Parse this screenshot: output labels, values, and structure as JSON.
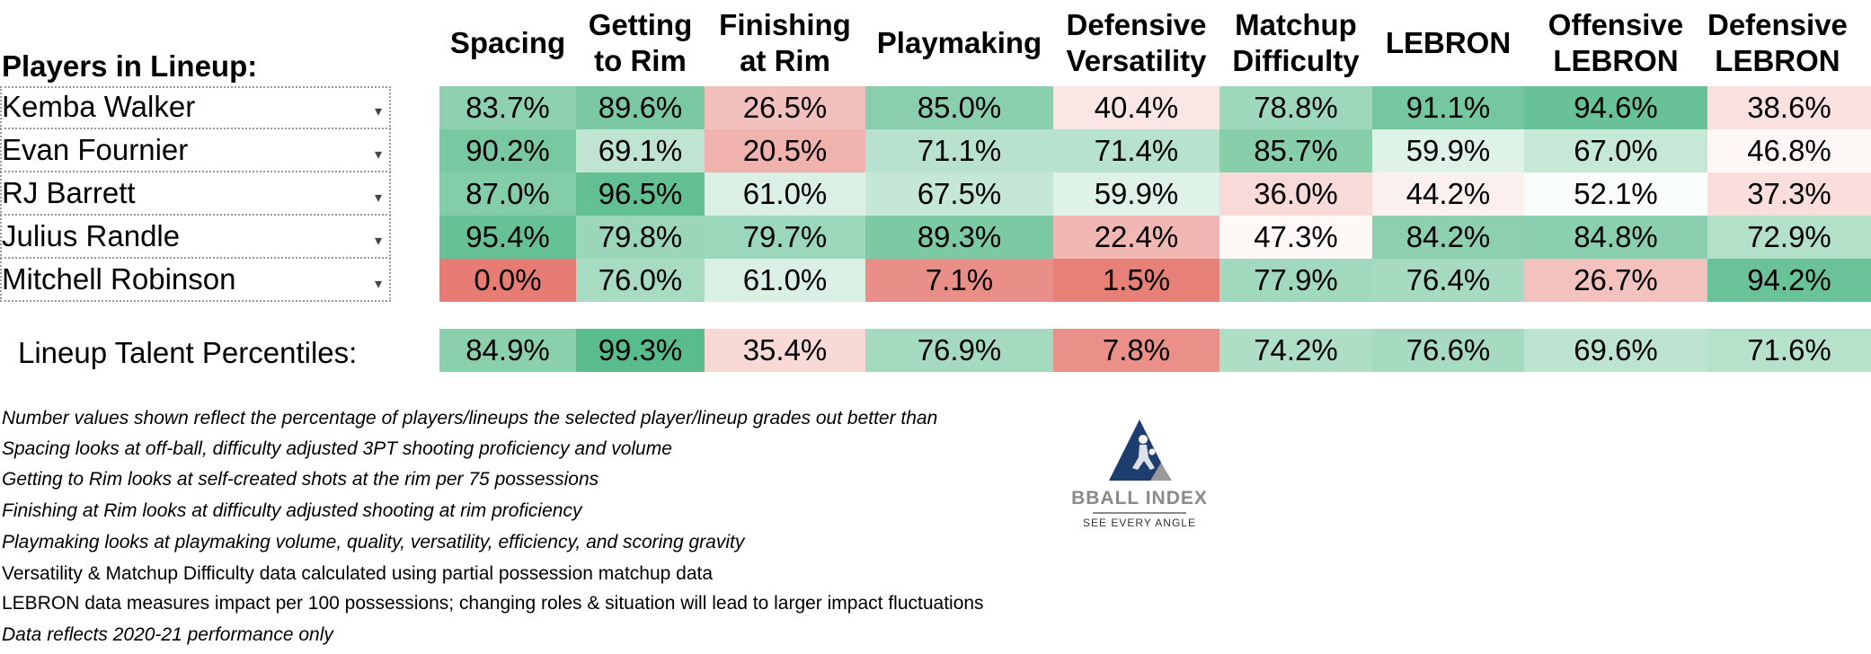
{
  "lineup_title": "Players in Lineup:",
  "columns": [
    "Spacing",
    "Getting\nto Rim",
    "Finishing\nat Rim",
    "Playmaking",
    "Defensive\nVersatility",
    "Matchup\nDifficulty",
    "LEBRON",
    "Offensive\nLEBRON",
    "Defensive\nLEBRON"
  ],
  "dropdown_icon": "chevron-down-icon",
  "players": [
    {
      "name": "Kemba Walker",
      "values": [
        "83.7%",
        "89.6%",
        "26.5%",
        "85.0%",
        "40.4%",
        "78.8%",
        "91.1%",
        "94.6%",
        "38.6%"
      ]
    },
    {
      "name": "Evan Fournier",
      "values": [
        "90.2%",
        "69.1%",
        "20.5%",
        "71.1%",
        "71.4%",
        "85.7%",
        "59.9%",
        "67.0%",
        "46.8%"
      ]
    },
    {
      "name": "RJ Barrett",
      "values": [
        "87.0%",
        "96.5%",
        "61.0%",
        "67.5%",
        "59.9%",
        "36.0%",
        "44.2%",
        "52.1%",
        "37.3%"
      ]
    },
    {
      "name": "Julius Randle",
      "values": [
        "95.4%",
        "79.8%",
        "79.7%",
        "89.3%",
        "22.4%",
        "47.3%",
        "84.2%",
        "84.8%",
        "72.9%"
      ]
    },
    {
      "name": "Mitchell Robinson",
      "values": [
        "0.0%",
        "76.0%",
        "61.0%",
        "7.1%",
        "1.5%",
        "77.9%",
        "76.4%",
        "26.7%",
        "94.2%"
      ]
    }
  ],
  "totals": {
    "label": "Lineup Talent Percentiles:",
    "values": [
      "84.9%",
      "99.3%",
      "35.4%",
      "76.9%",
      "7.8%",
      "74.2%",
      "76.6%",
      "69.6%",
      "71.6%"
    ]
  },
  "colors": {
    "scale_low": "#e67c73",
    "scale_mid": "#ffffff",
    "scale_high": "#57bb8a",
    "logo_navy": "#1c3d6e",
    "logo_gray": "#9a9a9a"
  },
  "notes": [
    {
      "text": "Number values shown reflect the percentage of players/lineups the selected player/lineup grades out better than",
      "italic": true
    },
    {
      "text": "Spacing looks at off-ball, difficulty adjusted 3PT shooting proficiency and volume",
      "italic": true
    },
    {
      "text": "Getting to Rim looks at self-created shots at the rim per 75 possessions",
      "italic": true
    },
    {
      "text": "Finishing at Rim looks at difficulty adjusted shooting at rim proficiency",
      "italic": true
    },
    {
      "text": "Playmaking looks at playmaking volume, quality, versatility, efficiency, and scoring gravity",
      "italic": true
    },
    {
      "text": "Versatility & Matchup Difficulty data calculated using partial possession matchup data",
      "italic": false
    },
    {
      "text": "LEBRON data measures impact per 100 possessions; changing roles & situation will lead to larger impact fluctuations",
      "italic": false
    },
    {
      "text": "Data reflects 2020-21 performance only",
      "italic": true
    }
  ],
  "logo": {
    "brand": "BBALL INDEX",
    "tagline": "SEE EVERY ANGLE"
  }
}
